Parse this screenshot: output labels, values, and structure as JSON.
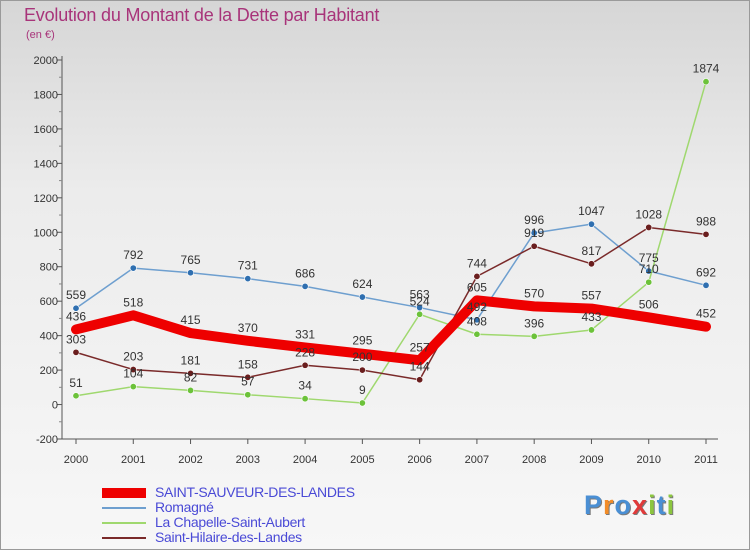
{
  "title": "Evolution du Montant de la Dette par Habitant",
  "subtitle": "(en €)",
  "brand": {
    "text": "Proxiti",
    "letter_colors": [
      "#4a8fd4",
      "#f28c28",
      "#4a8fd4",
      "#e03a3a",
      "#8cc63f",
      "#4a8fd4",
      "#8cc63f"
    ]
  },
  "chart_data": {
    "type": "line",
    "title": "Evolution du Montant de la Dette par Habitant",
    "ylabel": "(en €)",
    "xlabel": "",
    "x": [
      "2000",
      "2001",
      "2002",
      "2003",
      "2004",
      "2005",
      "2006",
      "2007",
      "2008",
      "2009",
      "2010",
      "2011"
    ],
    "ylim": [
      -200,
      2000
    ],
    "yticks": [
      "-200",
      "0",
      "200",
      "400",
      "600",
      "800",
      "1000",
      "1200",
      "1400",
      "1600",
      "1800",
      "2000"
    ],
    "grid": false,
    "legend_position": "bottom-left",
    "series": [
      {
        "name": "Romagné",
        "color": "#6e9fcf",
        "marker_color": "#2f6fb0",
        "values": [
          559,
          792,
          765,
          731,
          686,
          624,
          563,
          492,
          996,
          1047,
          775,
          692
        ],
        "labels": [
          "559",
          "792",
          "765",
          "731",
          "686",
          "624",
          "563",
          "492",
          "996",
          "1047",
          "775",
          "692"
        ]
      },
      {
        "name": "La Chapelle-Saint-Aubert",
        "color": "#9fd86e",
        "marker_color": "#6cc23a",
        "values": [
          51,
          104,
          82,
          57,
          34,
          9,
          524,
          408,
          396,
          433,
          710,
          1874
        ],
        "labels": [
          "51",
          "104",
          "82",
          "57",
          "34",
          "9",
          "524",
          "408",
          "396",
          "433",
          "710",
          "1874"
        ]
      },
      {
        "name": "Saint-Hilaire-des-Landes",
        "color": "#7a2a2a",
        "marker_color": "#6a1e1e",
        "values": [
          303,
          203,
          181,
          158,
          228,
          200,
          144,
          744,
          919,
          817,
          1028,
          988
        ],
        "labels": [
          "303",
          "203",
          "181",
          "158",
          "228",
          "200",
          "144",
          "744",
          "919",
          "817",
          "1028",
          "988"
        ]
      },
      {
        "name": "SAINT-SAUVEUR-DES-LANDES",
        "color": "#ee0000",
        "marker_color": "#ee0000",
        "values": [
          436,
          518,
          415,
          370,
          331,
          295,
          257,
          605,
          570,
          557,
          506,
          452
        ],
        "labels": [
          "436",
          "518",
          "415",
          "370",
          "331",
          "295",
          "257",
          "605",
          "570",
          "557",
          "506",
          "452"
        ]
      }
    ],
    "legend_order": [
      "SAINT-SAUVEUR-DES-LANDES",
      "Romagné",
      "La Chapelle-Saint-Aubert",
      "Saint-Hilaire-des-Landes"
    ]
  }
}
